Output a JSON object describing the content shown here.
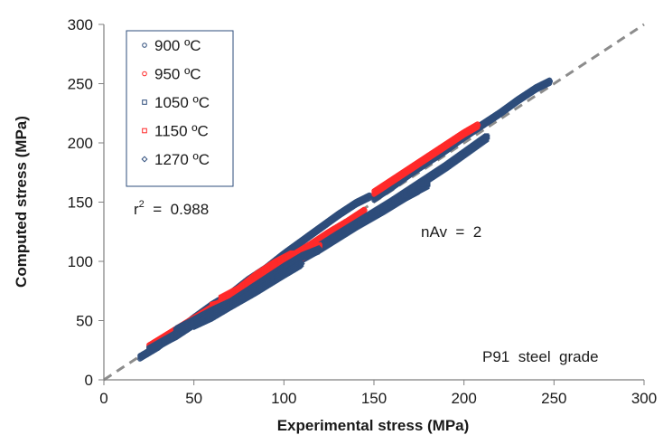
{
  "chart_data": {
    "type": "scatter",
    "title": "",
    "xlabel": "Experimental  stress  (MPa)",
    "ylabel": "Computed  stress  (MPa)",
    "xlim": [
      0,
      300
    ],
    "ylim": [
      0,
      300
    ],
    "xticks": [
      "0",
      "50",
      "100",
      "150",
      "200",
      "250",
      "300"
    ],
    "yticks": [
      "0",
      "50",
      "100",
      "150",
      "200",
      "250",
      "300"
    ],
    "grid": false,
    "legend_position": "top-left",
    "reference_line": {
      "style": "dashed",
      "color": "#8c8c8c",
      "x": [
        0,
        300
      ],
      "y": [
        0,
        300
      ]
    },
    "annotations": {
      "r2_prefix": "r",
      "r2_sup": "2",
      "r2_suffix": "  =  0.988",
      "nav": "nAv  =  2",
      "grade": "P91  steel  grade"
    },
    "series": [
      {
        "name": "900 ºC",
        "marker": "circle",
        "color": "#2e4d7b",
        "segments": [
          [
            [
              20,
              19
            ],
            [
              30,
              28
            ],
            [
              40,
              40
            ],
            [
              50,
              52
            ],
            [
              60,
              63
            ],
            [
              70,
              72
            ],
            [
              80,
              84
            ],
            [
              90,
              94
            ],
            [
              100,
              106
            ],
            [
              110,
              117
            ],
            [
              120,
              128
            ],
            [
              130,
              139
            ],
            [
              140,
              149
            ],
            [
              148,
              155
            ]
          ],
          [
            [
              28,
              28
            ],
            [
              40,
              37
            ],
            [
              50,
              47
            ],
            [
              60,
              56
            ],
            [
              75,
              72
            ],
            [
              90,
              87
            ],
            [
              105,
              101
            ],
            [
              120,
              115
            ],
            [
              135,
              128
            ],
            [
              150,
              140
            ],
            [
              165,
              152
            ],
            [
              175,
              160
            ]
          ],
          [
            [
              150,
              153
            ],
            [
              160,
              163
            ],
            [
              170,
              174
            ],
            [
              180,
              184
            ],
            [
              190,
              194
            ],
            [
              200,
              205
            ],
            [
              210,
              215
            ],
            [
              220,
              225
            ],
            [
              230,
              236
            ],
            [
              240,
              246
            ],
            [
              248,
              252
            ]
          ]
        ]
      },
      {
        "name": "950 ºC",
        "marker": "circle",
        "color": "#ff2a2a",
        "segments": [
          [
            [
              25,
              28
            ],
            [
              40,
              42
            ],
            [
              55,
              56
            ],
            [
              70,
              70
            ],
            [
              85,
              85
            ],
            [
              100,
              100
            ],
            [
              115,
              114
            ],
            [
              125,
              124
            ],
            [
              135,
              133
            ],
            [
              145,
              143
            ]
          ],
          [
            [
              150,
              158
            ],
            [
              160,
              168
            ],
            [
              170,
              178
            ],
            [
              180,
              188
            ],
            [
              190,
              198
            ],
            [
              200,
              208
            ],
            [
              208,
              215
            ]
          ]
        ]
      },
      {
        "name": "1050 ºC",
        "marker": "square",
        "color": "#2e4d7b",
        "segments": [
          [
            [
              25,
              25
            ],
            [
              40,
              38
            ],
            [
              55,
              53
            ],
            [
              70,
              66
            ],
            [
              85,
              80
            ],
            [
              100,
              94
            ],
            [
              120,
              111
            ],
            [
              140,
              130
            ],
            [
              155,
              143
            ],
            [
              170,
              157
            ],
            [
              180,
              165
            ]
          ],
          [
            [
              60,
              60
            ],
            [
              80,
              76
            ],
            [
              100,
              93
            ],
            [
              130,
              122
            ],
            [
              160,
              150
            ],
            [
              190,
              180
            ],
            [
              213,
              205
            ]
          ]
        ]
      },
      {
        "name": "1150 ºC",
        "marker": "square",
        "color": "#ff2a2a",
        "segments": [
          [
            [
              60,
              62
            ],
            [
              70,
              66
            ],
            [
              80,
              77
            ],
            [
              90,
              86
            ],
            [
              100,
              96
            ],
            [
              110,
              104
            ],
            [
              120,
              113
            ]
          ],
          [
            [
              65,
              68
            ],
            [
              75,
              76
            ],
            [
              85,
              88
            ],
            [
              95,
              98
            ],
            [
              105,
              106
            ]
          ]
        ]
      },
      {
        "name": "1270 ºC",
        "marker": "diamond",
        "color": "#2e4d7b",
        "segments": [
          [
            [
              40,
              42
            ],
            [
              50,
              50
            ],
            [
              60,
              58
            ],
            [
              70,
              65
            ],
            [
              80,
              75
            ],
            [
              90,
              85
            ],
            [
              100,
              95
            ],
            [
              110,
              104
            ],
            [
              120,
              110
            ]
          ],
          [
            [
              50,
              46
            ],
            [
              60,
              53
            ],
            [
              70,
              62
            ],
            [
              85,
              75
            ],
            [
              100,
              89
            ],
            [
              110,
              98
            ]
          ]
        ]
      }
    ]
  }
}
